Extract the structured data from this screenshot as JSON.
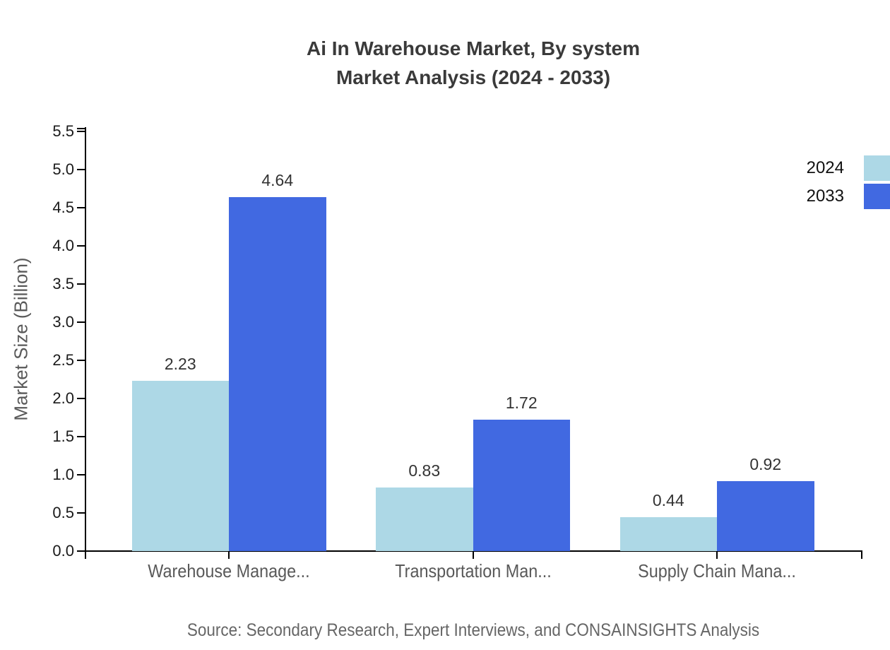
{
  "title": {
    "line1": "Ai In Warehouse Market, By system",
    "line2": "Market Analysis (2024 - 2033)"
  },
  "source_note": "Source: Secondary Research, Expert Interviews, and CONSAINSIGHTS Analysis",
  "legend": {
    "items": [
      {
        "label": "2024",
        "color": "#ADD8E6"
      },
      {
        "label": "2033",
        "color": "#4169E1"
      }
    ]
  },
  "colors": {
    "bar_2024": "#ADD8E6",
    "bar_2033": "#4169E1",
    "axis": "#000000",
    "title_text": "#3a3a3a",
    "tick_text": "#1a1a1a",
    "category_text": "#595959",
    "value_text": "#333333",
    "source_text": "#666666"
  },
  "chart_data": {
    "type": "bar",
    "title": "Ai In Warehouse Market, By system Market Analysis (2024 - 2033)",
    "categories": [
      "Warehouse Manage...",
      "Transportation Man...",
      "Supply Chain Mana..."
    ],
    "series": [
      {
        "name": "2024",
        "color": "#ADD8E6",
        "values": [
          2.23,
          0.83,
          0.44
        ]
      },
      {
        "name": "2033",
        "color": "#4169E1",
        "values": [
          4.64,
          1.72,
          0.92
        ]
      }
    ],
    "xlabel": "",
    "ylabel": "Market Size (Billion)",
    "ylim": [
      0,
      5.5
    ],
    "ytick_step": 0.5,
    "grid": false,
    "legend_position": "top-right",
    "value_labels": true,
    "value_label_decimals": 2
  }
}
